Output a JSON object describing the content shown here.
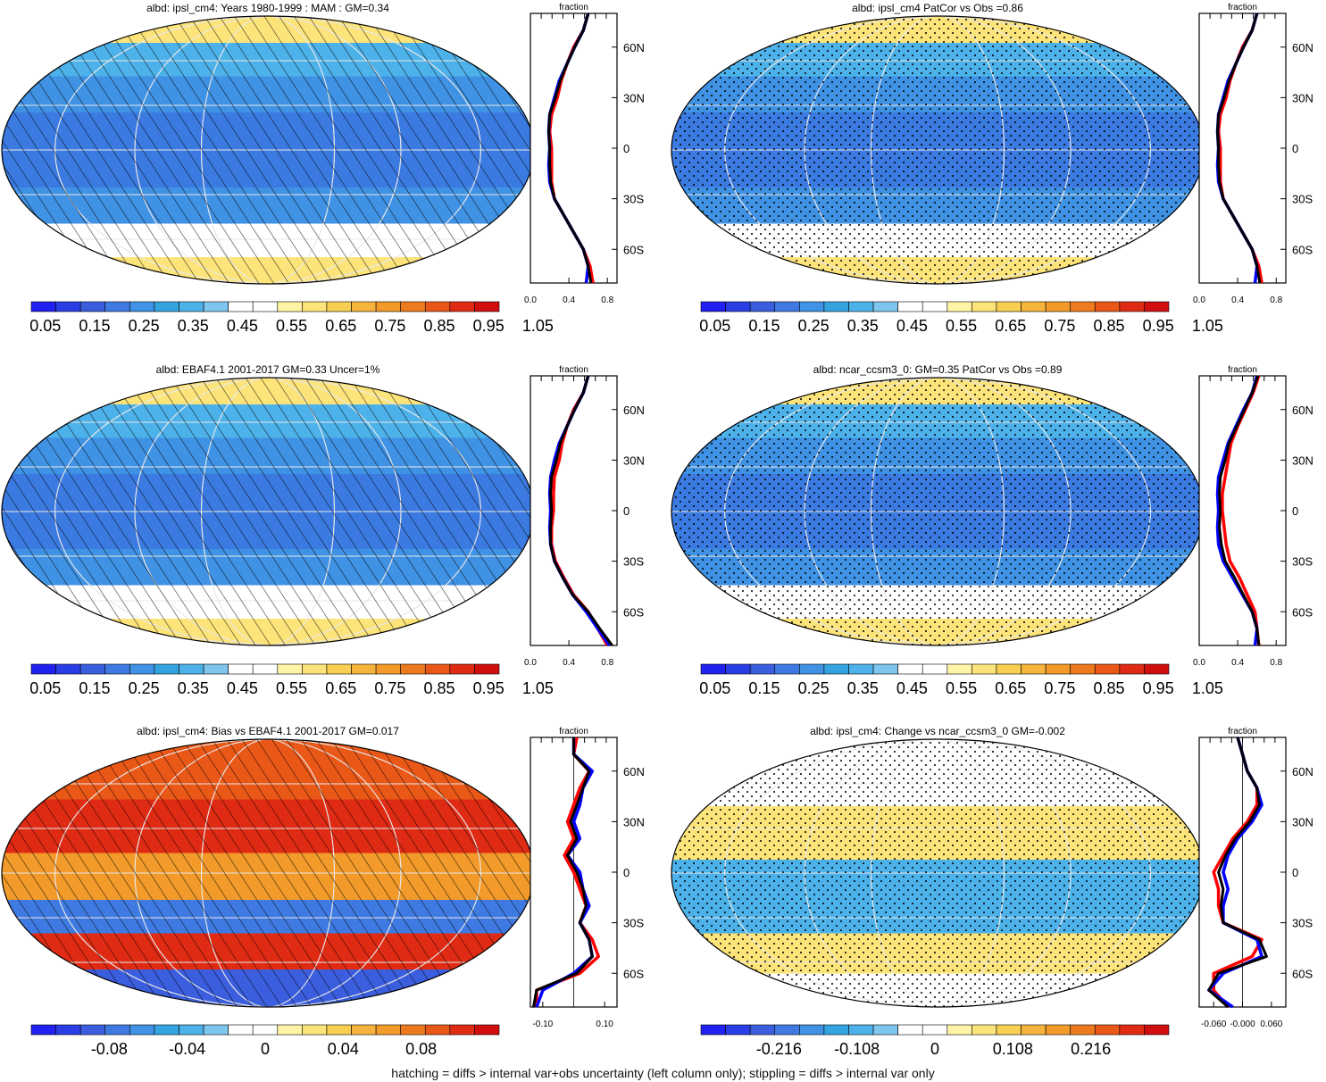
{
  "colors": {
    "seq": [
      "#2020f0",
      "#2a3ee6",
      "#3b5ede",
      "#3f7ae2",
      "#3f92e4",
      "#34a4e0",
      "#4db2ea",
      "#7fc6ee",
      "#ffffff",
      "#ffffff",
      "#fff4a6",
      "#fde47a",
      "#f8cf52",
      "#f6b43c",
      "#f29a2a",
      "#ee7a1e",
      "#ea5818",
      "#e02b14",
      "#d00e0e"
    ],
    "div": [
      "#2020f0",
      "#2a3ee6",
      "#3b5ede",
      "#3f7ae2",
      "#3f92e4",
      "#34a4e0",
      "#4db2ea",
      "#7fc6ee",
      "#ffffff",
      "#ffffff",
      "#fff4a6",
      "#fde47a",
      "#f8cf52",
      "#f6b43c",
      "#f29a2a",
      "#ee7a1e",
      "#ea5818",
      "#e02b14",
      "#d00e0e"
    ],
    "model_line": "#ff0000",
    "obs_line": "#0000ff",
    "ref_line": "#000000"
  },
  "footer": "hatching = diffs > internal var+obs uncertainty (left column only); stippling = diffs > internal var only",
  "chart_data": [
    {
      "type": "heatmap",
      "title": "albd: ipsl_cm4: Years 1980-1999 : MAM : GM=0.34",
      "colorbar_labels": [
        "0.05",
        "0.15",
        "0.25",
        "0.35",
        "0.45",
        "0.55",
        "0.65",
        "0.75",
        "0.85",
        "0.95",
        "1.05"
      ],
      "palette": "seq",
      "pattern": "hatch",
      "zonal": {
        "title": "fraction",
        "xlim": [
          0,
          0.9
        ],
        "xticks": [
          "0.0",
          "0.4",
          "0.8"
        ],
        "xtick_values": [
          0,
          0.4,
          0.8
        ],
        "ylim": [
          -80,
          80
        ],
        "ylabels": [
          "60N",
          "30N",
          "0",
          "30S",
          "60S"
        ],
        "ytick_values": [
          60,
          30,
          0,
          -30,
          -60
        ],
        "lat": [
          80,
          70,
          60,
          50,
          40,
          30,
          20,
          10,
          0,
          -10,
          -20,
          -30,
          -40,
          -50,
          -60,
          -70,
          -80
        ],
        "series": [
          {
            "name": "",
            "color": "#ff0000",
            "values": [
              0.6,
              0.55,
              0.45,
              0.38,
              0.32,
              0.28,
              0.22,
              0.2,
              0.22,
              0.22,
              0.22,
              0.25,
              0.35,
              0.45,
              0.55,
              0.62,
              0.65
            ]
          },
          {
            "name": "",
            "color": "#0000ff",
            "values": [
              0.6,
              0.55,
              0.46,
              0.38,
              0.3,
              0.25,
              0.2,
              0.19,
              0.2,
              0.19,
              0.2,
              0.25,
              0.35,
              0.45,
              0.55,
              0.6,
              0.58
            ]
          },
          {
            "name": "",
            "color": "#000000",
            "values": [
              0.6,
              0.55,
              0.46,
              0.38,
              0.31,
              0.26,
              0.2,
              0.19,
              0.2,
              0.2,
              0.21,
              0.25,
              0.35,
              0.45,
              0.55,
              0.6,
              0.63
            ]
          }
        ]
      }
    },
    {
      "type": "heatmap",
      "title": "albd: ipsl_cm4 PatCor vs Obs =0.86",
      "colorbar_labels": [
        "0.05",
        "0.15",
        "0.25",
        "0.35",
        "0.45",
        "0.55",
        "0.65",
        "0.75",
        "0.85",
        "0.95",
        "1.05"
      ],
      "palette": "seq",
      "pattern": "stipple",
      "zonal": {
        "title": "fraction",
        "xlim": [
          0,
          0.9
        ],
        "xticks": [
          "0.0",
          "0.4",
          "0.8"
        ],
        "xtick_values": [
          0,
          0.4,
          0.8
        ],
        "ylim": [
          -80,
          80
        ],
        "ylabels": [
          "60N",
          "30N",
          "0",
          "30S",
          "60S"
        ],
        "ytick_values": [
          60,
          30,
          0,
          -30,
          -60
        ],
        "lat": [
          80,
          70,
          60,
          50,
          40,
          30,
          20,
          10,
          0,
          -10,
          -20,
          -30,
          -40,
          -50,
          -60,
          -70,
          -80
        ],
        "series": [
          {
            "name": "",
            "color": "#ff0000",
            "values": [
              0.6,
              0.55,
              0.45,
              0.38,
              0.32,
              0.28,
              0.22,
              0.2,
              0.22,
              0.22,
              0.22,
              0.25,
              0.35,
              0.45,
              0.55,
              0.62,
              0.65
            ]
          },
          {
            "name": "",
            "color": "#0000ff",
            "values": [
              0.6,
              0.55,
              0.46,
              0.38,
              0.3,
              0.25,
              0.2,
              0.19,
              0.2,
              0.19,
              0.2,
              0.25,
              0.35,
              0.45,
              0.55,
              0.6,
              0.58
            ]
          },
          {
            "name": "",
            "color": "#000000",
            "values": [
              0.6,
              0.55,
              0.46,
              0.38,
              0.31,
              0.26,
              0.2,
              0.19,
              0.2,
              0.2,
              0.21,
              0.25,
              0.35,
              0.45,
              0.55,
              0.6,
              0.63
            ]
          }
        ]
      }
    },
    {
      "type": "heatmap",
      "title": "albd: EBAF4.1 2001-2017 GM=0.33 Uncer=1%",
      "colorbar_labels": [
        "0.05",
        "0.15",
        "0.25",
        "0.35",
        "0.45",
        "0.55",
        "0.65",
        "0.75",
        "0.85",
        "0.95",
        "1.05"
      ],
      "palette": "seq",
      "pattern": "hatch",
      "zonal": {
        "title": "fraction",
        "xlim": [
          0,
          0.9
        ],
        "xticks": [
          "0.0",
          "0.4",
          "0.8"
        ],
        "xtick_values": [
          0,
          0.4,
          0.8
        ],
        "ylim": [
          -80,
          80
        ],
        "ylabels": [
          "60N",
          "30N",
          "0",
          "30S",
          "60S"
        ],
        "ytick_values": [
          60,
          30,
          0,
          -30,
          -60
        ],
        "lat": [
          80,
          70,
          60,
          50,
          40,
          30,
          20,
          10,
          0,
          -10,
          -20,
          -30,
          -40,
          -50,
          -60,
          -70,
          -80
        ],
        "series": [
          {
            "name": "",
            "color": "#ff0000",
            "values": [
              0.6,
              0.55,
              0.45,
              0.38,
              0.33,
              0.3,
              0.25,
              0.24,
              0.24,
              0.22,
              0.22,
              0.26,
              0.35,
              0.45,
              0.6,
              0.7,
              0.8
            ]
          },
          {
            "name": "",
            "color": "#0000ff",
            "values": [
              0.6,
              0.55,
              0.46,
              0.38,
              0.3,
              0.25,
              0.21,
              0.2,
              0.21,
              0.2,
              0.21,
              0.25,
              0.34,
              0.44,
              0.58,
              0.7,
              0.82
            ]
          },
          {
            "name": "",
            "color": "#000000",
            "values": [
              0.6,
              0.55,
              0.46,
              0.38,
              0.31,
              0.27,
              0.22,
              0.21,
              0.22,
              0.21,
              0.21,
              0.25,
              0.34,
              0.44,
              0.6,
              0.72,
              0.85
            ]
          }
        ]
      }
    },
    {
      "type": "heatmap",
      "title": "albd: ncar_ccsm3_0: GM=0.35 PatCor vs Obs =0.89",
      "colorbar_labels": [
        "0.05",
        "0.15",
        "0.25",
        "0.35",
        "0.45",
        "0.55",
        "0.65",
        "0.75",
        "0.85",
        "0.95",
        "1.05"
      ],
      "palette": "seq",
      "pattern": "stipple",
      "zonal": {
        "title": "fraction",
        "xlim": [
          0,
          0.9
        ],
        "xticks": [
          "0.0",
          "0.4",
          "0.8"
        ],
        "xtick_values": [
          0,
          0.4,
          0.8
        ],
        "ylim": [
          -80,
          80
        ],
        "ylabels": [
          "60N",
          "30N",
          "0",
          "30S",
          "60S"
        ],
        "ytick_values": [
          60,
          30,
          0,
          -30,
          -60
        ],
        "lat": [
          80,
          70,
          60,
          50,
          40,
          30,
          20,
          10,
          0,
          -10,
          -20,
          -30,
          -40,
          -50,
          -60,
          -70,
          -80
        ],
        "series": [
          {
            "name": "",
            "color": "#ff0000",
            "values": [
              0.62,
              0.56,
              0.48,
              0.4,
              0.33,
              0.3,
              0.27,
              0.24,
              0.24,
              0.26,
              0.28,
              0.32,
              0.42,
              0.5,
              0.58,
              0.6,
              0.62
            ]
          },
          {
            "name": "",
            "color": "#0000ff",
            "values": [
              0.6,
              0.55,
              0.46,
              0.38,
              0.3,
              0.25,
              0.2,
              0.19,
              0.2,
              0.19,
              0.2,
              0.25,
              0.35,
              0.45,
              0.55,
              0.6,
              0.58
            ]
          },
          {
            "name": "",
            "color": "#000000",
            "values": [
              0.61,
              0.55,
              0.47,
              0.39,
              0.31,
              0.27,
              0.22,
              0.21,
              0.22,
              0.21,
              0.23,
              0.27,
              0.37,
              0.46,
              0.55,
              0.6,
              0.62
            ]
          }
        ]
      }
    },
    {
      "type": "heatmap",
      "title": "albd: ipsl_cm4: Bias vs EBAF4.1 2001-2017 GM=0.017",
      "colorbar_labels": [
        "-0.08",
        "-0.04",
        "0",
        "0.04",
        "0.08"
      ],
      "palette": "div",
      "pattern": "hatch",
      "zonal": {
        "title": "fraction",
        "xlim": [
          -0.14,
          0.14
        ],
        "xticks": [
          "-0.10",
          "0.10"
        ],
        "xtick_values": [
          -0.1,
          0.1
        ],
        "ylim": [
          -80,
          80
        ],
        "ylabels": [
          "60N",
          "30N",
          "0",
          "30S",
          "60S"
        ],
        "ytick_values": [
          60,
          30,
          0,
          -30,
          -60
        ],
        "lat": [
          80,
          70,
          60,
          50,
          40,
          30,
          20,
          10,
          0,
          -10,
          -20,
          -30,
          -40,
          -50,
          -60,
          -70,
          -80
        ],
        "zero_line": 0,
        "series": [
          {
            "name": "",
            "color": "#ff0000",
            "values": [
              0.01,
              0.0,
              0.05,
              0.02,
              0.0,
              -0.02,
              0.0,
              -0.03,
              0.0,
              0.02,
              0.04,
              0.02,
              0.06,
              0.08,
              0.02,
              -0.12,
              -0.12
            ]
          },
          {
            "name": "",
            "color": "#0000ff",
            "values": [
              0.0,
              0.0,
              0.06,
              0.03,
              0.02,
              0.0,
              0.02,
              -0.02,
              0.02,
              0.03,
              0.05,
              0.02,
              0.05,
              0.06,
              0.0,
              -0.1,
              -0.12
            ]
          },
          {
            "name": "",
            "color": "#000000",
            "values": [
              0.0,
              0.0,
              0.05,
              0.03,
              0.01,
              -0.01,
              0.01,
              -0.02,
              0.01,
              0.03,
              0.04,
              0.02,
              0.05,
              0.06,
              0.01,
              -0.12,
              -0.13
            ]
          }
        ]
      }
    },
    {
      "type": "heatmap",
      "title": "albd: ipsl_cm4: Change vs ncar_ccsm3_0 GM=-0.002",
      "colorbar_labels": [
        "-0.216",
        "-0.108",
        "0",
        "0.108",
        "0.216"
      ],
      "palette": "div",
      "pattern": "stipple",
      "zonal": {
        "title": "fraction",
        "xlim": [
          -0.09,
          0.09
        ],
        "xticks": [
          "-0.060",
          "-0.000",
          "0.060"
        ],
        "xtick_values": [
          -0.06,
          0.0,
          0.06
        ],
        "ylim": [
          -80,
          80
        ],
        "ylabels": [
          "60N",
          "30N",
          "0",
          "30S",
          "60S"
        ],
        "ytick_values": [
          60,
          30,
          0,
          -30,
          -60
        ],
        "lat": [
          80,
          70,
          60,
          50,
          40,
          30,
          20,
          10,
          0,
          -10,
          -20,
          -30,
          -40,
          -50,
          -60,
          -70,
          -80
        ],
        "zero_line": 0,
        "series": [
          {
            "name": "",
            "color": "#ff0000",
            "values": [
              -0.01,
              0.0,
              0.01,
              0.03,
              0.03,
              0.01,
              -0.02,
              -0.04,
              -0.06,
              -0.05,
              -0.05,
              -0.04,
              0.04,
              0.02,
              -0.06,
              -0.06,
              -0.03
            ]
          },
          {
            "name": "",
            "color": "#0000ff",
            "values": [
              -0.01,
              0.0,
              0.01,
              0.03,
              0.04,
              0.02,
              -0.01,
              -0.03,
              -0.04,
              -0.03,
              -0.04,
              -0.04,
              0.03,
              0.04,
              -0.04,
              -0.07,
              -0.02
            ]
          },
          {
            "name": "",
            "color": "#000000",
            "values": [
              -0.01,
              0.0,
              0.01,
              0.03,
              0.035,
              0.015,
              -0.015,
              -0.035,
              -0.05,
              -0.04,
              -0.045,
              -0.04,
              0.035,
              0.05,
              -0.05,
              -0.07,
              -0.03
            ]
          }
        ]
      }
    }
  ]
}
